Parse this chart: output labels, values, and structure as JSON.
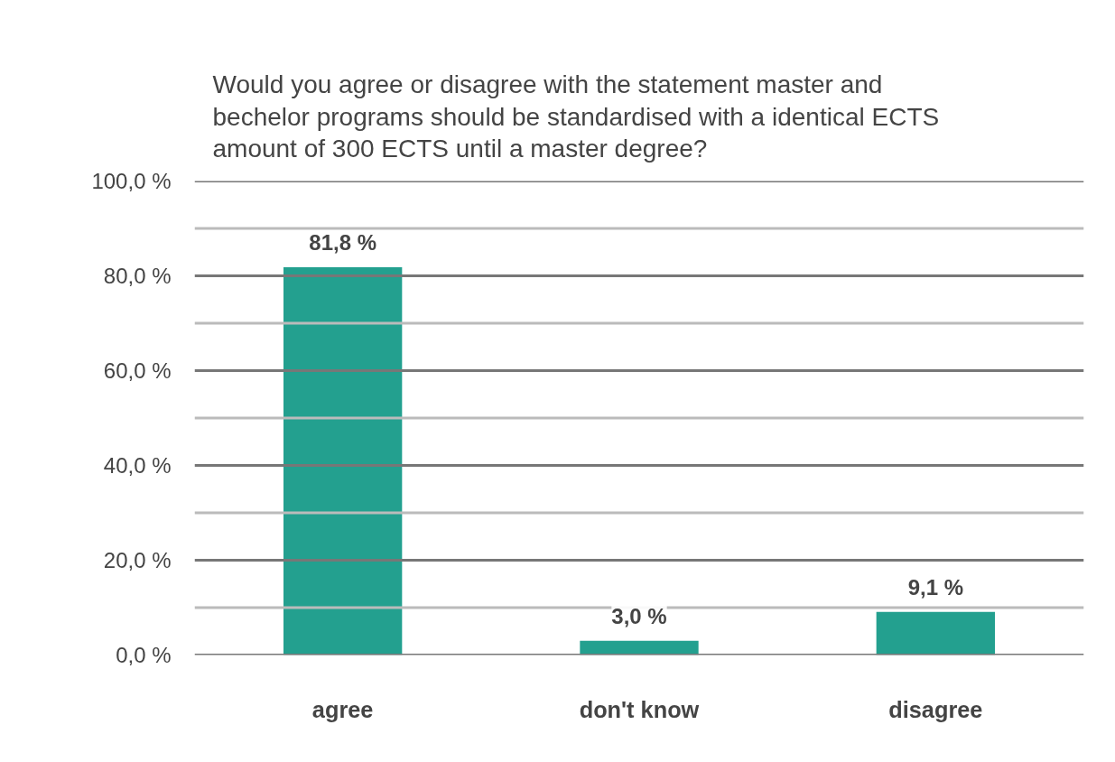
{
  "chart_data": {
    "type": "bar",
    "title": "Would you agree or disagree with the statement master and\nbechelor programs should be standardised with a  identical ECTS\namount of 300 ECTS until a master degree?",
    "categories": [
      "agree",
      "don't know",
      "disagree"
    ],
    "values": [
      81.8,
      3.0,
      9.1
    ],
    "value_labels": [
      "81,8 %",
      "3,0 %",
      "9,1 %"
    ],
    "color": "#23a08f",
    "ylim": [
      0,
      100
    ],
    "yticks": [
      {
        "value": 0,
        "label": "0,0 %"
      },
      {
        "value": 10,
        "label": null
      },
      {
        "value": 20,
        "label": "20,0 %"
      },
      {
        "value": 30,
        "label": null
      },
      {
        "value": 40,
        "label": "40,0 %"
      },
      {
        "value": 50,
        "label": null
      },
      {
        "value": 60,
        "label": "60,0 %"
      },
      {
        "value": 70,
        "label": null
      },
      {
        "value": 80,
        "label": "80,0 %"
      },
      {
        "value": 90,
        "label": null
      },
      {
        "value": 100,
        "label": "100,0 %"
      }
    ],
    "grid": "y"
  }
}
